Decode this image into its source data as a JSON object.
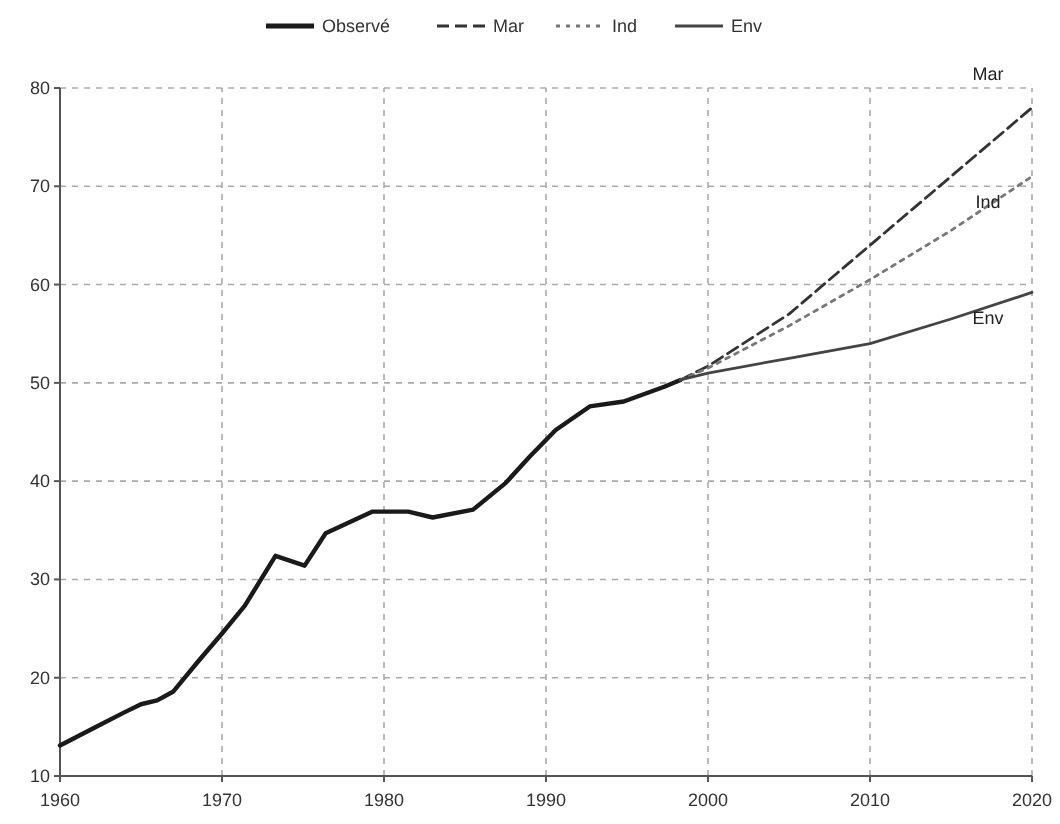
{
  "chart_data": {
    "type": "line",
    "x": [
      1960,
      1962,
      1964,
      1965,
      1966,
      1967,
      1968.6,
      1970,
      1971.4,
      1973.3,
      1975.1,
      1976.4,
      1979.3,
      1981.5,
      1983,
      1985.5,
      1987.5,
      1989,
      1990.6,
      1992.7,
      1994.8,
      1997.3,
      1998.3
    ],
    "series": [
      {
        "name": "Observé",
        "color": "#1a1a1a",
        "line_style": "solid",
        "values": [
          13.1,
          14.8,
          16.5,
          17.3,
          17.7,
          18.6,
          21.8,
          24.5,
          27.3,
          32.4,
          31.4,
          34.7,
          36.9,
          36.9,
          36.3,
          37.1,
          39.8,
          42.5,
          45.2,
          47.6,
          48.1,
          49.6,
          50.3
        ]
      },
      {
        "name": "Mar",
        "color": "#333333",
        "line_style": "dashed",
        "x": [
          1998.3,
          2000,
          2005,
          2010,
          2015,
          2020
        ],
        "values": [
          50.3,
          51.7,
          57,
          64,
          71,
          78
        ]
      },
      {
        "name": "Ind",
        "color": "#777777",
        "line_style": "dotted",
        "x": [
          1998.3,
          2000,
          2005,
          2010,
          2015,
          2020
        ],
        "values": [
          50.3,
          51.5,
          55.8,
          60.5,
          65.5,
          71
        ]
      },
      {
        "name": "Env",
        "color": "#444444",
        "line_style": "solid",
        "x": [
          1998.3,
          2000,
          2005,
          2010,
          2015,
          2020
        ],
        "values": [
          50.3,
          51,
          52.5,
          54,
          56.5,
          59.2
        ]
      }
    ],
    "xlim": [
      1960,
      2020
    ],
    "xticks": [
      1960,
      1970,
      1980,
      1990,
      2000,
      2010,
      2020
    ],
    "ylim": [
      10,
      80
    ],
    "yticks": [
      10,
      20,
      30,
      40,
      50,
      60,
      70,
      80
    ],
    "grid": true,
    "legend": "top"
  }
}
